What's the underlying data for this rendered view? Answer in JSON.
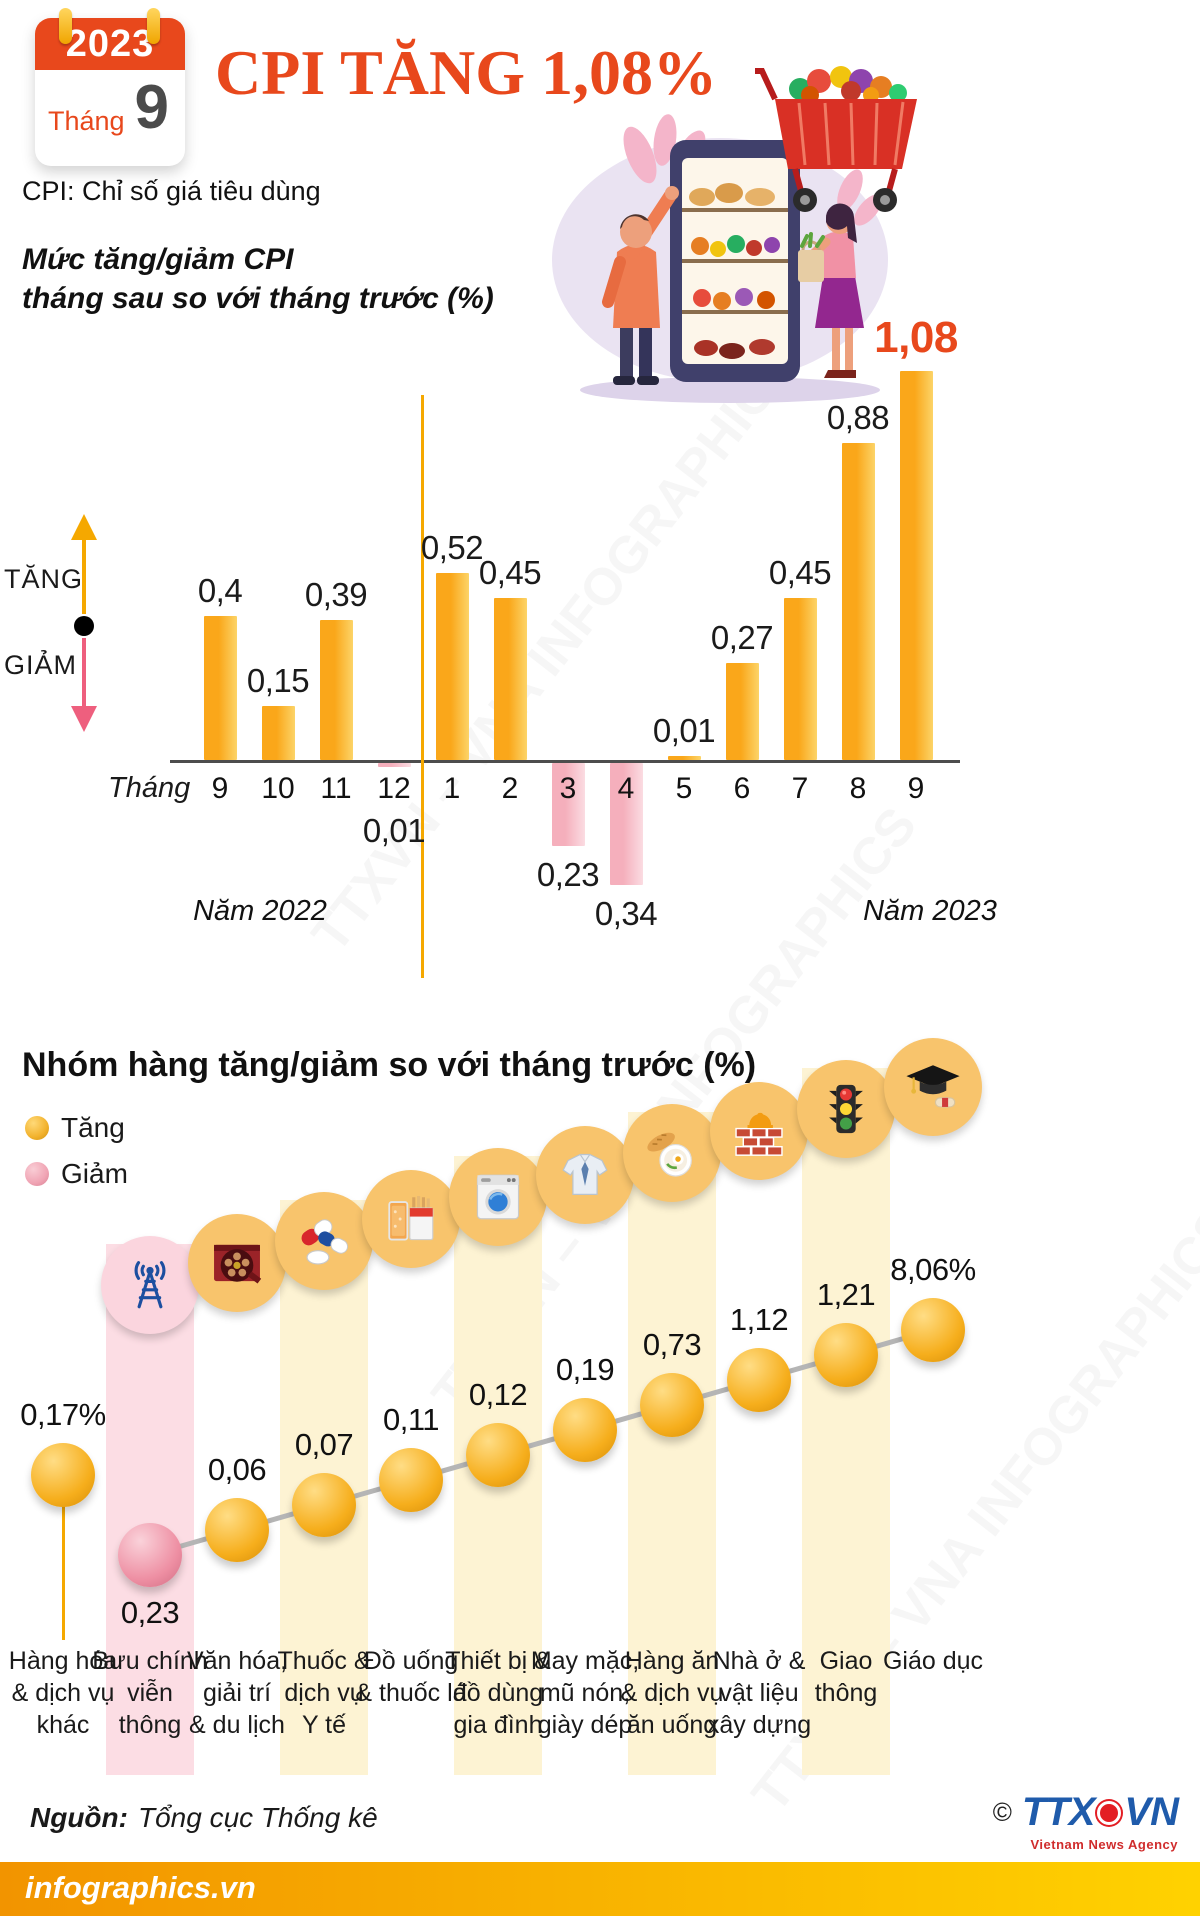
{
  "header": {
    "calendar": {
      "year": "2023",
      "month_word": "Tháng",
      "month_number": "9"
    },
    "title": "CPI TĂNG 1,08%",
    "definition": "CPI: Chỉ số giá tiêu dùng"
  },
  "chart_data": [
    {
      "type": "bar",
      "title": "Mức tăng/giảm CPI tháng sau so với tháng trước (%)",
      "title_lines": [
        "Mức tăng/giảm CPI",
        "tháng sau so với tháng trước (%)"
      ],
      "x_prefix": "Tháng",
      "categories": [
        "9",
        "10",
        "11",
        "12",
        "1",
        "2",
        "3",
        "4",
        "5",
        "6",
        "7",
        "8",
        "9"
      ],
      "values": [
        0.4,
        0.15,
        0.39,
        -0.01,
        0.52,
        0.45,
        -0.23,
        -0.34,
        0.01,
        0.27,
        0.45,
        0.88,
        1.08
      ],
      "value_labels": [
        "0,4",
        "0,15",
        "0,39",
        "0,01",
        "0,52",
        "0,45",
        "0,23",
        "0,34",
        "0,01",
        "0,27",
        "0,45",
        "0,88",
        "1,08"
      ],
      "highlight_index": 12,
      "divider_after_index": 3,
      "year_labels": {
        "left": "Năm 2022",
        "right": "Năm 2023"
      },
      "direction_legend": {
        "up": "TĂNG",
        "down": "GIẢM"
      },
      "ylim": [
        -0.4,
        1.2
      ],
      "grid": false,
      "colors": {
        "positive": "#fbb216",
        "negative": "#f6b6c2",
        "highlight_label": "#e8481c",
        "divider": "#f5a800"
      }
    },
    {
      "type": "scatter",
      "title": "Nhóm hàng tăng/giảm so với tháng trước (%)",
      "legend": [
        {
          "label": "Tăng",
          "color": "#f2b22d"
        },
        {
          "label": "Giảm",
          "color": "#f0a4b4"
        }
      ],
      "points": [
        {
          "category": "Hàng hóa & dịch vụ khác",
          "lines": [
            "Hàng hóa",
            "& dịch vụ",
            "khác"
          ],
          "value": 0.17,
          "label": "0,17%",
          "direction": "up",
          "band": "none",
          "icon": "none"
        },
        {
          "category": "Bưu chính viễn thông",
          "lines": [
            "Bưu chính",
            "viễn",
            "thông"
          ],
          "value": -0.23,
          "label": "0,23",
          "direction": "down",
          "band": "pink",
          "icon": "antenna-icon"
        },
        {
          "category": "Văn hóa, giải trí & du lịch",
          "lines": [
            "Văn hóa,",
            "giải trí",
            "& du lịch"
          ],
          "value": 0.06,
          "label": "0,06",
          "direction": "up",
          "band": "none",
          "icon": "film-reel-icon"
        },
        {
          "category": "Thuốc & dịch vụ Y tế",
          "lines": [
            "Thuốc &",
            "dịch vụ",
            "Y tế"
          ],
          "value": 0.07,
          "label": "0,07",
          "direction": "up",
          "band": "yellow",
          "icon": "medicine-icon"
        },
        {
          "category": "Đồ uống & thuốc lá",
          "lines": [
            "Đồ uống",
            "& thuốc lá"
          ],
          "value": 0.11,
          "label": "0,11",
          "direction": "up",
          "band": "none",
          "icon": "beverage-tobacco-icon"
        },
        {
          "category": "Thiết bị & đồ dùng gia đình",
          "lines": [
            "Thiết bị &",
            "đồ dùng",
            "gia đình"
          ],
          "value": 0.12,
          "label": "0,12",
          "direction": "up",
          "band": "yellow",
          "icon": "washing-machine-icon"
        },
        {
          "category": "May mặc, mũ nón, giày dép",
          "lines": [
            "May mặc,",
            "mũ nón,",
            "giày dép"
          ],
          "value": 0.19,
          "label": "0,19",
          "direction": "up",
          "band": "none",
          "icon": "apparel-icon"
        },
        {
          "category": "Hàng ăn & dịch vụ ăn uống",
          "lines": [
            "Hàng ăn",
            "& dịch vụ",
            "ăn uống"
          ],
          "value": 0.73,
          "label": "0,73",
          "direction": "up",
          "band": "yellow",
          "icon": "food-icon"
        },
        {
          "category": "Nhà ở & vật liệu xây dựng",
          "lines": [
            "Nhà ở &",
            "vật liệu",
            "xây dựng"
          ],
          "value": 1.12,
          "label": "1,12",
          "direction": "up",
          "band": "none",
          "icon": "construction-icon"
        },
        {
          "category": "Giao thông",
          "lines": [
            "Giao",
            "thông"
          ],
          "value": 1.21,
          "label": "1,21",
          "direction": "up",
          "band": "yellow",
          "icon": "traffic-light-icon"
        },
        {
          "category": "Giáo dục",
          "lines": [
            "Giáo dục"
          ],
          "value": 8.06,
          "label": "8,06%",
          "direction": "up",
          "band": "none",
          "icon": "graduation-icon"
        }
      ]
    }
  ],
  "footer": {
    "source_label": "Nguồn:",
    "source_value": "Tổng cục Thống kê",
    "brand": "infographics.vn",
    "agency": {
      "copyright": "©",
      "name_part1": "TTX",
      "name_part2": "VN",
      "tagline": "Vietnam News Agency"
    }
  },
  "watermark": "TTXVN – VNA INFOGRAPHICS"
}
